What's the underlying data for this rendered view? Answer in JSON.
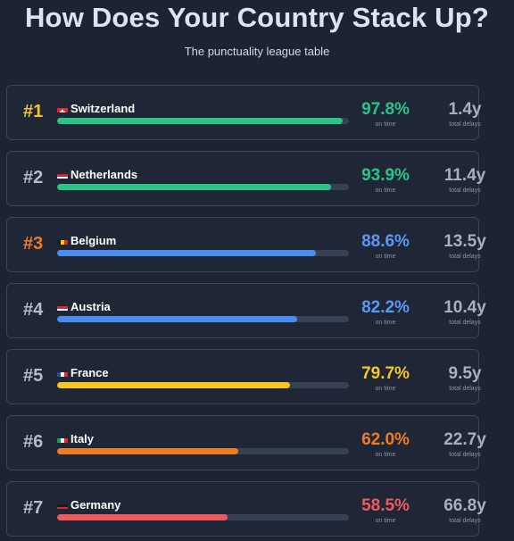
{
  "header": {
    "title": "How Does Your Country Stack Up?",
    "subtitle": "The punctuality league table"
  },
  "labels": {
    "on_time": "on time",
    "total_delays": "total delays"
  },
  "chart_data": {
    "type": "bar",
    "title": "How Does Your Country Stack Up?",
    "subtitle": "The punctuality league table",
    "xlim": [
      0,
      100
    ],
    "categories": [
      "Switzerland",
      "Netherlands",
      "Belgium",
      "Austria",
      "France",
      "Italy",
      "Germany"
    ],
    "values": [
      97.8,
      93.9,
      88.6,
      82.2,
      79.7,
      62.0,
      58.5
    ],
    "rows": [
      {
        "rank": "#1",
        "country": "Switzerland",
        "on_time_pct": 97.8,
        "on_time_label": "97.8%",
        "delays": "1.4y",
        "rank_color": "#f4c430",
        "bar_color": "#2ac489",
        "pct_color": "#2ac489",
        "flag": "switzerland-flag-icon"
      },
      {
        "rank": "#2",
        "country": "Netherlands",
        "on_time_pct": 93.9,
        "on_time_label": "93.9%",
        "delays": "11.4y",
        "rank_color": "#b3bccb",
        "bar_color": "#2ac489",
        "pct_color": "#2ac489",
        "flag": "netherlands-flag-icon"
      },
      {
        "rank": "#3",
        "country": "Belgium",
        "on_time_pct": 88.6,
        "on_time_label": "88.6%",
        "delays": "13.5y",
        "rank_color": "#f07b22",
        "bar_color": "#4a8cf0",
        "pct_color": "#5a99f3",
        "flag": "belgium-flag-icon"
      },
      {
        "rank": "#4",
        "country": "Austria",
        "on_time_pct": 82.2,
        "on_time_label": "82.2%",
        "delays": "10.4y",
        "rank_color": "#b3bccb",
        "bar_color": "#4a8cf0",
        "pct_color": "#5a99f3",
        "flag": "austria-flag-icon"
      },
      {
        "rank": "#5",
        "country": "France",
        "on_time_pct": 79.7,
        "on_time_label": "79.7%",
        "delays": "9.5y",
        "rank_color": "#b3bccb",
        "bar_color": "#f6c623",
        "pct_color": "#f6c623",
        "flag": "france-flag-icon"
      },
      {
        "rank": "#6",
        "country": "Italy",
        "on_time_pct": 62.0,
        "on_time_label": "62.0%",
        "delays": "22.7y",
        "rank_color": "#b3bccb",
        "bar_color": "#f07b22",
        "pct_color": "#f07b22",
        "flag": "italy-flag-icon"
      },
      {
        "rank": "#7",
        "country": "Germany",
        "on_time_pct": 58.5,
        "on_time_label": "58.5%",
        "delays": "66.8y",
        "rank_color": "#b3bccb",
        "bar_color": "#ef5a5e",
        "pct_color": "#ef5a5e",
        "flag": "germany-flag-icon"
      }
    ]
  }
}
